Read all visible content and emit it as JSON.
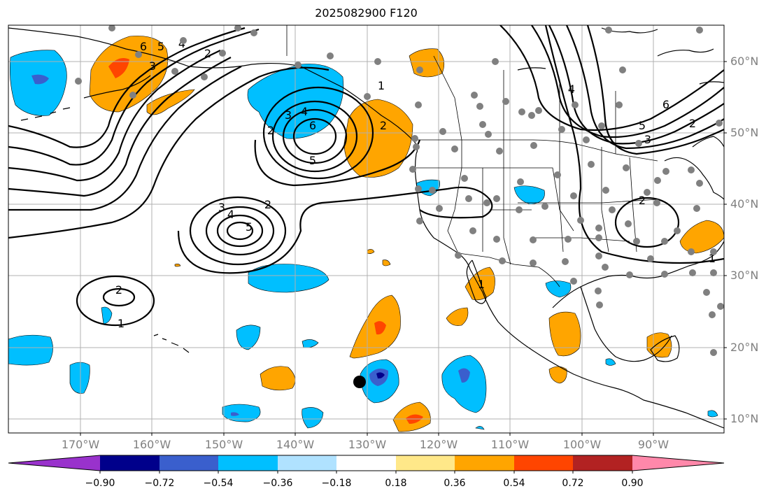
{
  "title": "2025082900 F120",
  "lat_labels": [
    "60°N",
    "50°N",
    "40°N",
    "30°N",
    "20°N",
    "10°N"
  ],
  "lon_labels": [
    "170°W",
    "160°W",
    "150°W",
    "140°W",
    "130°W",
    "120°W",
    "110°W",
    "100°W",
    "90°W"
  ],
  "colorbar": {
    "tick_labels": [
      "−0.90",
      "−0.72",
      "−0.54",
      "−0.36",
      "−0.18",
      "0.18",
      "0.36",
      "0.54",
      "0.72",
      "0.90"
    ],
    "colors": [
      "#9932cc",
      "#00008b",
      "#3a5fcd",
      "#00bfff",
      "#b0e2ff",
      "#ffffff",
      "#ffe889",
      "#ffa500",
      "#ff4500",
      "#b22222",
      "#ff88aa"
    ]
  },
  "contour_labels": [
    "6",
    "5",
    "4",
    "3",
    "2",
    "1",
    "1",
    "2",
    "3",
    "4",
    "6",
    "5",
    "2",
    "3",
    "4",
    "5",
    "2",
    "1",
    "2",
    "6",
    "5",
    "2",
    "3",
    "4",
    "2",
    "1"
  ],
  "fill_colors": {
    "light_blue": "#b0e2ff",
    "sky_blue": "#00bfff",
    "royal_blue": "#3a5fcd",
    "navy": "#00008b",
    "orange": "#ffa500",
    "red_orange": "#ff4500",
    "contour": "#000000",
    "station": "#808080",
    "grid": "#b0b0b0"
  },
  "marker": "black-dot-marker"
}
